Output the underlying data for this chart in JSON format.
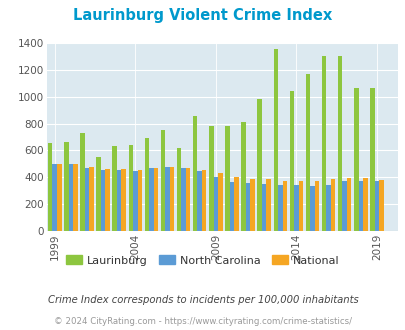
{
  "title": "Laurinburg Violent Crime Index",
  "years": [
    1999,
    2000,
    2001,
    2002,
    2003,
    2004,
    2005,
    2006,
    2007,
    2008,
    2009,
    2010,
    2011,
    2012,
    2013,
    2014,
    2015,
    2016,
    2017,
    2018,
    2019
  ],
  "laurinburg": [
    655,
    665,
    730,
    550,
    635,
    640,
    695,
    750,
    620,
    855,
    780,
    780,
    810,
    980,
    1355,
    1040,
    1165,
    1305,
    1300,
    1065,
    1065
  ],
  "nc": [
    495,
    495,
    470,
    455,
    455,
    450,
    470,
    475,
    470,
    450,
    405,
    365,
    355,
    350,
    340,
    340,
    335,
    345,
    370,
    375,
    370
  ],
  "national": [
    500,
    500,
    475,
    465,
    465,
    455,
    470,
    475,
    470,
    455,
    435,
    405,
    390,
    390,
    370,
    375,
    375,
    390,
    395,
    395,
    380
  ],
  "laurinburg_color": "#8dc63f",
  "nc_color": "#5b9bd5",
  "national_color": "#f5a623",
  "bg_color": "#dce9f0",
  "title_color": "#0099cc",
  "ylabel_max": 1400,
  "yticks": [
    0,
    200,
    400,
    600,
    800,
    1000,
    1200,
    1400
  ],
  "xticks": [
    1999,
    2004,
    2009,
    2014,
    2019
  ],
  "legend_labels": [
    "Laurinburg",
    "North Carolina",
    "National"
  ],
  "footnote1": "Crime Index corresponds to incidents per 100,000 inhabitants",
  "footnote2": "© 2024 CityRating.com - https://www.cityrating.com/crime-statistics/",
  "bar_width": 0.28,
  "figsize": [
    4.06,
    3.3
  ],
  "dpi": 100
}
